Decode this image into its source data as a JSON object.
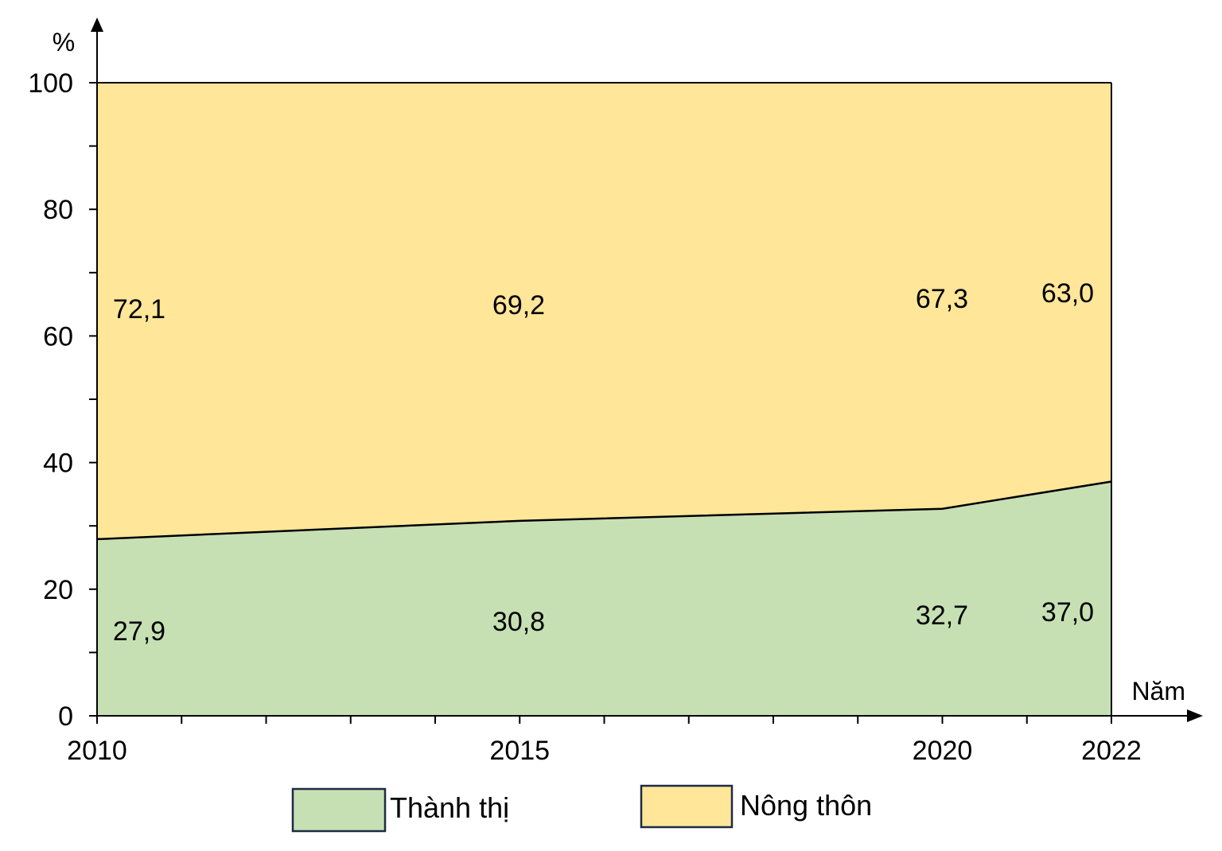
{
  "chart_data": {
    "type": "area",
    "stacked": true,
    "percent": true,
    "x": [
      2010,
      2015,
      2020,
      2022
    ],
    "series": [
      {
        "name": "Thành thị",
        "values": [
          27.9,
          30.8,
          32.7,
          37.0
        ],
        "labels": [
          "27,9",
          "30,8",
          "32,7",
          "37,0"
        ],
        "color": "#C6E0B4"
      },
      {
        "name": "Nông thôn",
        "values": [
          72.1,
          69.2,
          67.3,
          63.0
        ],
        "labels": [
          "72,1",
          "69,2",
          "67,3",
          "63,0"
        ],
        "color": "#FFE699"
      }
    ],
    "x_ticks": [
      "2010",
      "2015",
      "2020",
      "2022"
    ],
    "y_ticks": [
      "0",
      "20",
      "40",
      "60",
      "80",
      "100"
    ],
    "y_tick_values": [
      0,
      20,
      40,
      60,
      80,
      100
    ],
    "xlim": [
      2010,
      2022
    ],
    "ylim": [
      0,
      100
    ],
    "xlabel": "Năm",
    "ylabel": "%",
    "grid": false,
    "legend_position": "bottom"
  }
}
